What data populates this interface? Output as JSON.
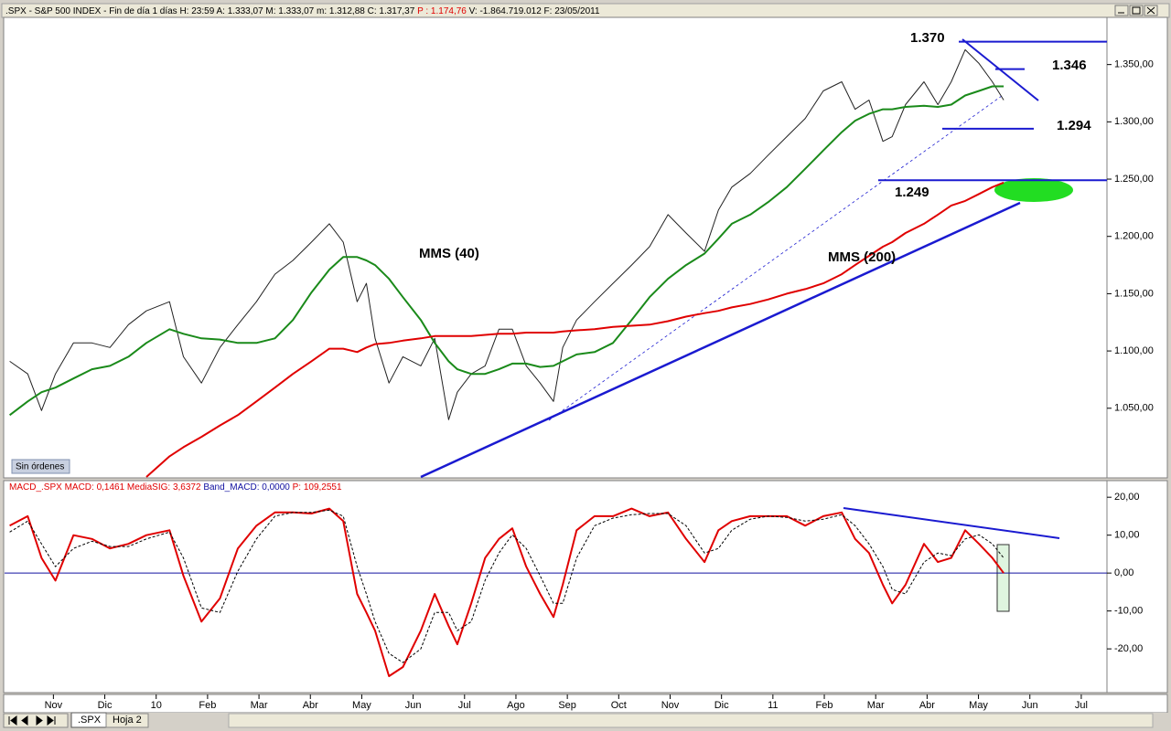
{
  "header": {
    "main": ".SPX - S&P 500 INDEX - Fin de día 1 días  H: 23:59  A: 1.333,07  M: 1.333,07  m: 1.312,88  C: 1.317,37  ",
    "highlight": "P : 1.174,76",
    "tail": "  V: -1.864.719.012  F: 23/05/2011"
  },
  "macd_header": {
    "part1": "MACD_.SPX  MACD: 0,1461  MediaSIG: 3,6372  ",
    "part2": "Band_MACD: 0,0000",
    "part3": "  P: 109,2551"
  },
  "orders_badge": "Sin órdenes",
  "tabs": [
    ".SPX",
    "Hoja 2"
  ],
  "chart_data": [
    {
      "type": "line",
      "xlim": [
        -0.95,
        20.5
      ],
      "xticks": [
        {
          "value": 0,
          "label": "Nov"
        },
        {
          "value": 1,
          "label": "Dic"
        },
        {
          "value": 2,
          "label": "10"
        },
        {
          "value": 3,
          "label": "Feb"
        },
        {
          "value": 4,
          "label": "Mar"
        },
        {
          "value": 5,
          "label": "Abr"
        },
        {
          "value": 6,
          "label": "May"
        },
        {
          "value": 7,
          "label": "Jun"
        },
        {
          "value": 8,
          "label": "Jul"
        },
        {
          "value": 9,
          "label": "Ago"
        },
        {
          "value": 10,
          "label": "Sep"
        },
        {
          "value": 11,
          "label": "Oct"
        },
        {
          "value": 12,
          "label": "Nov"
        },
        {
          "value": 13,
          "label": "Dic"
        },
        {
          "value": 14,
          "label": "11"
        },
        {
          "value": 15,
          "label": "Feb"
        },
        {
          "value": 16,
          "label": "Mar"
        },
        {
          "value": 17,
          "label": "Abr"
        },
        {
          "value": 18,
          "label": "May"
        },
        {
          "value": 19,
          "label": "Jun"
        },
        {
          "value": 20,
          "label": "Jul"
        }
      ],
      "ylim": [
        990,
        1392
      ],
      "yticks": [
        {
          "value": 1050,
          "label": "1.050,00"
        },
        {
          "value": 1100,
          "label": "1.100,00"
        },
        {
          "value": 1150,
          "label": "1.150,00"
        },
        {
          "value": 1200,
          "label": "1.200,00"
        },
        {
          "value": 1250,
          "label": "1.250,00"
        },
        {
          "value": 1300,
          "label": "1.300,00"
        },
        {
          "value": 1350,
          "label": "1.350,00"
        }
      ],
      "x": [
        -0.85,
        -0.5,
        -0.23,
        0.04,
        0.39,
        0.75,
        1.1,
        1.46,
        1.81,
        2.26,
        2.53,
        2.88,
        3.24,
        3.59,
        3.95,
        4.31,
        4.66,
        5.02,
        5.37,
        5.64,
        5.91,
        6.09,
        6.26,
        6.53,
        6.8,
        7.15,
        7.42,
        7.69,
        7.86,
        8.13,
        8.4,
        8.67,
        8.93,
        9.2,
        9.47,
        9.73,
        9.91,
        10.18,
        10.53,
        10.89,
        11.25,
        11.6,
        11.96,
        12.31,
        12.67,
        12.94,
        13.2,
        13.56,
        13.91,
        14.27,
        14.63,
        14.98,
        15.34,
        15.6,
        15.87,
        16.14,
        16.32,
        16.58,
        16.94,
        17.21,
        17.47,
        17.74,
        18.01,
        18.27,
        18.49
      ],
      "series": [
        {
          "color": "#222222",
          "values": [
            1091,
            1080,
            1048,
            1080,
            1107,
            1107,
            1103,
            1123,
            1135,
            1143,
            1095,
            1072,
            1103,
            1123,
            1143,
            1167,
            1179,
            1195,
            1211,
            1195,
            1143,
            1159,
            1111,
            1072,
            1095,
            1087,
            1111,
            1040,
            1064,
            1080,
            1087,
            1119,
            1119,
            1087,
            1072,
            1056,
            1103,
            1127,
            1143,
            1159,
            1175,
            1191,
            1219,
            1203,
            1187,
            1223,
            1243,
            1255,
            1271,
            1287,
            1303,
            1327,
            1335,
            1311,
            1319,
            1283,
            1287,
            1315,
            1335,
            1315,
            1335,
            1363,
            1351,
            1335,
            1319
          ]
        },
        {
          "name": "MMS (40)",
          "color": "#1a8a1a",
          "values": [
            1044,
            1056,
            1064,
            1068,
            1076,
            1084,
            1087,
            1095,
            1107,
            1119,
            1115,
            1111,
            1110,
            1107,
            1107,
            1111,
            1127,
            1151,
            1171,
            1182,
            1182,
            1179,
            1175,
            1163,
            1147,
            1127,
            1107,
            1091,
            1084,
            1080,
            1080,
            1084,
            1089,
            1089,
            1086,
            1087,
            1091,
            1097,
            1099,
            1107,
            1127,
            1147,
            1163,
            1175,
            1185,
            1198,
            1211,
            1219,
            1230,
            1243,
            1259,
            1275,
            1291,
            1301,
            1307,
            1311,
            1311,
            1313,
            1314,
            1313,
            1315,
            1323,
            1327,
            1331,
            1331
          ]
        },
        {
          "name": "MMS (200)",
          "color": "#e00000",
          "values": [
            null,
            null,
            null,
            null,
            null,
            null,
            null,
            null,
            990,
            1008,
            1016,
            1025,
            1035,
            1044,
            1056,
            1068,
            1080,
            1091,
            1102,
            1102,
            1099,
            1103,
            1106,
            1107,
            1109,
            1111,
            1113,
            1113,
            1113,
            1113,
            1114,
            1115,
            1115,
            1116,
            1116,
            1116,
            1117,
            1118,
            1119,
            1121,
            1122,
            1123,
            1126,
            1130,
            1133,
            1135,
            1138,
            1141,
            1145,
            1150,
            1154,
            1159,
            1167,
            1175,
            1183,
            1191,
            1195,
            1203,
            1211,
            1219,
            1227,
            1231,
            1237,
            1243,
            1247
          ]
        }
      ],
      "annotations": [
        {
          "value": 1370,
          "label": "1.370"
        },
        {
          "value": 1346,
          "label": "1.346"
        },
        {
          "value": 1294,
          "label": "1.294"
        },
        {
          "value": 1249,
          "label": "1.249"
        }
      ],
      "annotation_color": "#e00000"
    },
    {
      "type": "line",
      "xlim": [
        -0.95,
        20.5
      ],
      "ylim": [
        -31.3,
        23.9
      ],
      "yticks": [
        {
          "value": -20,
          "label": "-20,00"
        },
        {
          "value": -10,
          "label": "-10,00"
        },
        {
          "value": 0,
          "label": "0,00"
        },
        {
          "value": 10,
          "label": "10,00"
        },
        {
          "value": 20,
          "label": "20,00"
        }
      ],
      "baseline": 0,
      "baseline_color": "#1010a0",
      "x": [
        -0.85,
        -0.5,
        -0.23,
        0.04,
        0.39,
        0.75,
        1.1,
        1.46,
        1.81,
        2.26,
        2.53,
        2.88,
        3.24,
        3.59,
        3.95,
        4.31,
        4.66,
        5.02,
        5.37,
        5.64,
        5.91,
        6.09,
        6.26,
        6.53,
        6.8,
        7.15,
        7.42,
        7.69,
        7.86,
        8.13,
        8.4,
        8.67,
        8.93,
        9.2,
        9.47,
        9.73,
        9.91,
        10.18,
        10.53,
        10.89,
        11.25,
        11.6,
        11.96,
        12.31,
        12.67,
        12.94,
        13.2,
        13.56,
        13.91,
        14.27,
        14.63,
        14.98,
        15.34,
        15.6,
        15.87,
        16.14,
        16.32,
        16.58,
        16.94,
        17.21,
        17.47,
        17.74,
        18.01,
        18.27,
        18.49
      ],
      "series": [
        {
          "color": "#e00000",
          "values": [
            12.5,
            15,
            4,
            -2,
            10,
            9,
            6.5,
            7.7,
            10,
            11.3,
            -0.7,
            -12.8,
            -6.7,
            6.5,
            12.5,
            16,
            16,
            15.7,
            17,
            13.7,
            -5.5,
            -10.4,
            -15.2,
            -27.2,
            -24.8,
            -15.2,
            -5.5,
            -14,
            -18.8,
            -8,
            4,
            9,
            11.8,
            1.7,
            -5.5,
            -11.6,
            -3.1,
            11.3,
            15,
            15,
            17,
            15,
            16,
            9,
            2.9,
            11.3,
            13.7,
            15,
            15,
            15,
            12.5,
            15,
            16,
            9,
            5.3,
            -3.1,
            -8,
            -3.1,
            7.7,
            2.9,
            4,
            11.3,
            7.7,
            4,
            0
          ]
        },
        {
          "color": "#000000",
          "dashed": true,
          "values": [
            10.8,
            13.7,
            7.7,
            1.7,
            6.5,
            8.4,
            7,
            7,
            9,
            10.8,
            4,
            -9.2,
            -10.4,
            0.5,
            9,
            15,
            16,
            16,
            16.6,
            15,
            1.7,
            -5.5,
            -12.8,
            -21.2,
            -23.6,
            -20,
            -10.4,
            -10.4,
            -15.2,
            -12.8,
            -1.9,
            5.3,
            10.1,
            6.5,
            -0.7,
            -8,
            -8,
            4,
            12.5,
            14.5,
            15.4,
            15.7,
            15.7,
            12.5,
            5.3,
            6.5,
            11.3,
            14.2,
            15,
            14.7,
            13.7,
            14.2,
            15.4,
            12.5,
            7.7,
            1.7,
            -4.3,
            -5.5,
            2.9,
            5.3,
            4.6,
            9,
            10.1,
            7.7,
            4
          ]
        }
      ]
    }
  ]
}
